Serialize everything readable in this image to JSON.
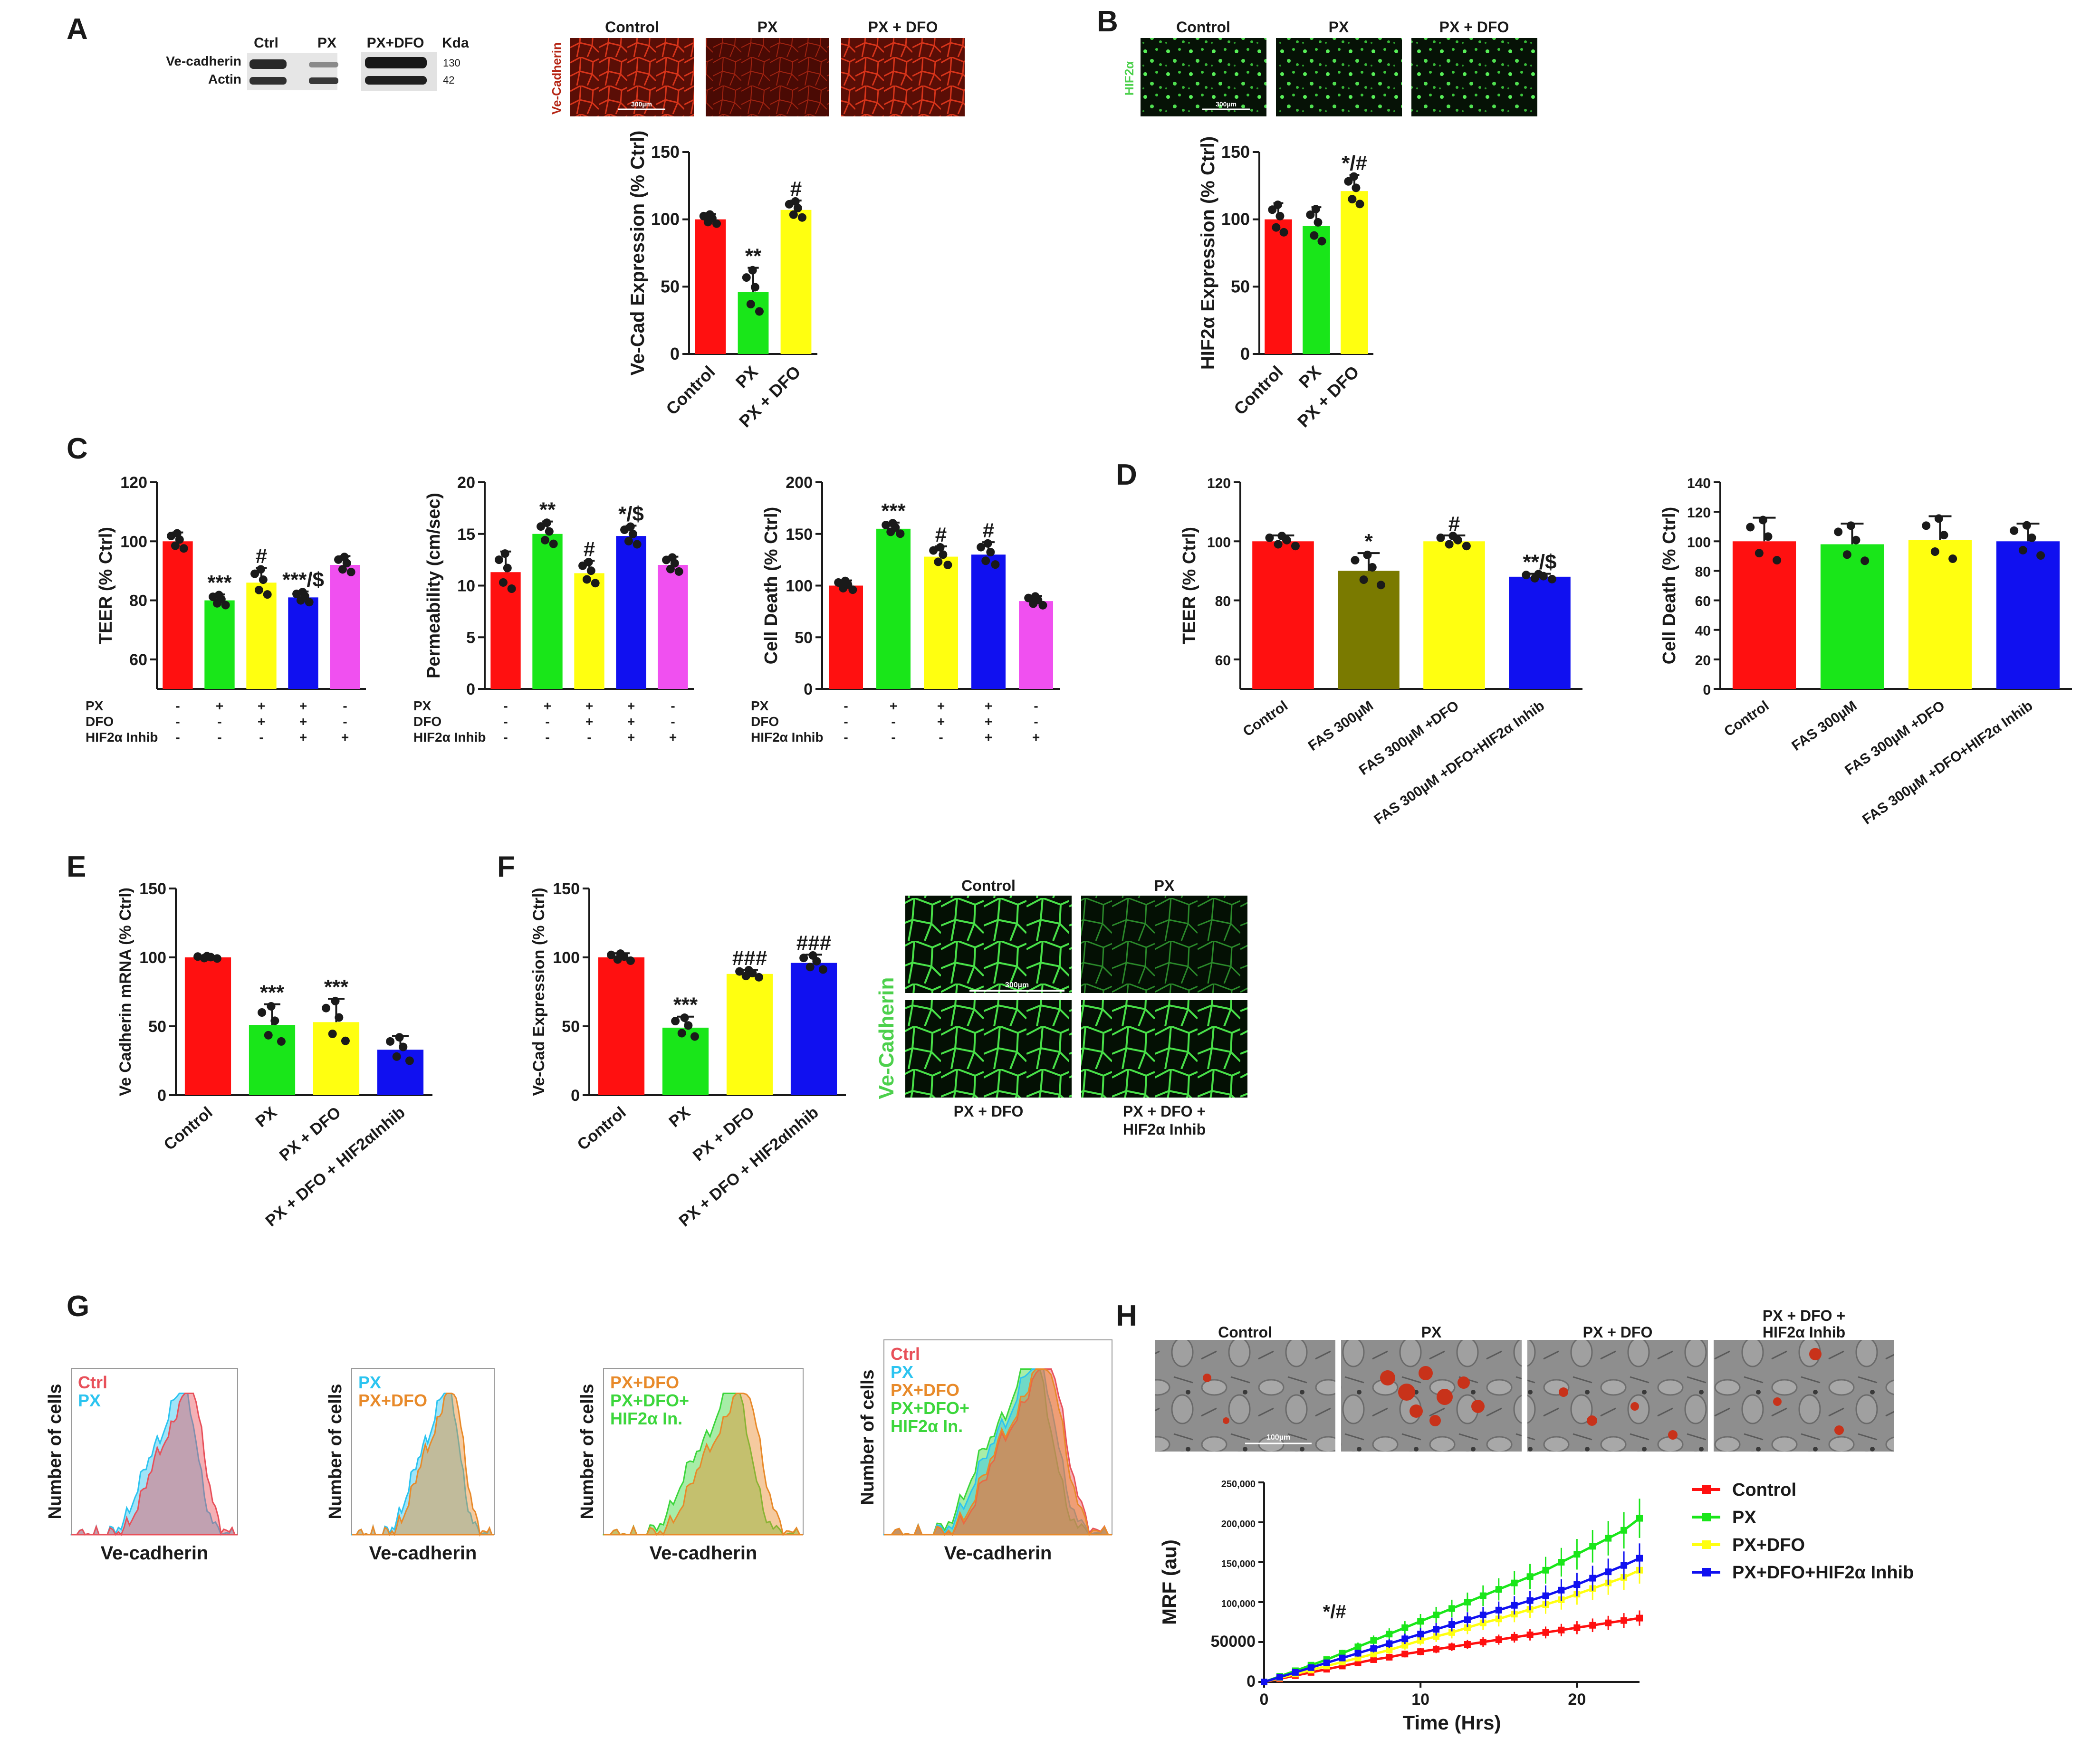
{
  "figure": {
    "panels": {
      "A": "A",
      "B": "B",
      "C": "C",
      "D": "D",
      "E": "E",
      "F": "F",
      "G": "G",
      "H": "H"
    }
  },
  "colors": {
    "red": "#ff1010",
    "green": "#19e619",
    "yellow": "#ffff10",
    "blue": "#1010f0",
    "magenta": "#f050f0",
    "olive": "#7a7a00",
    "hist_red": "#e8505a",
    "hist_cyan": "#2cc4f0",
    "hist_orange": "#e88a2a",
    "hist_green": "#3cd63c",
    "ve_red": "#b52514",
    "hif_green": "#4cd04c"
  },
  "blot": {
    "lanes": [
      "Ctrl",
      "PX",
      "PX+DFO"
    ],
    "kda_label": "Kda",
    "rows": [
      {
        "name": "Ve-cadherin",
        "kda": "130"
      },
      {
        "name": "Actin",
        "kda": "42"
      }
    ]
  },
  "micro_A": {
    "stain": "Ve-Cadherin",
    "scale": "300µm",
    "titles": [
      "Control",
      "PX",
      "PX + DFO"
    ]
  },
  "micro_B": {
    "stain": "HIF2α",
    "scale": "300µm",
    "titles": [
      "Control",
      "PX",
      "PX + DFO"
    ]
  },
  "micro_F": {
    "stain": "Ve-Cadherin",
    "scale": "300µm",
    "titles": [
      "Control",
      "PX"
    ],
    "bottom_titles": [
      "PX + DFO",
      "PX + DFO +",
      "HIF2α Inhib"
    ]
  },
  "micro_H": {
    "scale": "100µm",
    "titles": [
      "Control",
      "PX",
      "PX + DFO",
      "PX + DFO +",
      "HIF2α Inhib"
    ]
  },
  "chart_data": [
    {
      "id": "A",
      "type": "bar",
      "ylabel": "Ve-Cad Expression (% Ctrl)",
      "ylim": [
        0,
        150
      ],
      "yticks": [
        0,
        50,
        100,
        150
      ],
      "categories": [
        "Control",
        "PX",
        "PX + DFO"
      ],
      "values": [
        100,
        46,
        107
      ],
      "errors": [
        4,
        18,
        7
      ],
      "colors": [
        "#ff1010",
        "#19e619",
        "#ffff10"
      ],
      "annotations": [
        "",
        "**",
        "#"
      ]
    },
    {
      "id": "B",
      "type": "bar",
      "ylabel": "HIF2α Expression (% Ctrl)",
      "ylim": [
        0,
        150
      ],
      "yticks": [
        0,
        50,
        100,
        150
      ],
      "categories": [
        "Control",
        "PX",
        "PX + DFO"
      ],
      "values": [
        100,
        95,
        121
      ],
      "errors": [
        12,
        14,
        12
      ],
      "colors": [
        "#ff1010",
        "#19e619",
        "#ffff10"
      ],
      "annotations": [
        "",
        "",
        "*/#"
      ]
    },
    {
      "id": "C1",
      "type": "bar",
      "ylabel": "TEER (% Ctrl)",
      "ylim": [
        50,
        120
      ],
      "yticks": [
        60,
        80,
        100,
        120
      ],
      "categories": [
        "",
        "",
        "",
        "",
        ""
      ],
      "values": [
        100,
        80,
        86,
        81,
        92
      ],
      "errors": [
        3,
        2,
        5,
        2,
        3
      ],
      "colors": [
        "#ff1010",
        "#19e619",
        "#ffff10",
        "#1010f0",
        "#f050f0"
      ],
      "annotations": [
        "",
        "***",
        "#",
        "***/$",
        ""
      ],
      "conditions": {
        "rows": [
          "PX",
          "DFO",
          "HIF2α Inhib"
        ],
        "values": [
          [
            "-",
            "+",
            "+",
            "+",
            "-"
          ],
          [
            "-",
            "-",
            "+",
            "+",
            "-"
          ],
          [
            "-",
            "-",
            "-",
            "+",
            "+"
          ]
        ]
      }
    },
    {
      "id": "C2",
      "type": "bar",
      "ylabel": "Permeability (cm/sec)",
      "ylim": [
        0,
        20
      ],
      "yticks": [
        0,
        5,
        10,
        15,
        20
      ],
      "categories": [
        "",
        "",
        "",
        "",
        ""
      ],
      "values": [
        11.3,
        15.0,
        11.2,
        14.8,
        12.0
      ],
      "errors": [
        2.0,
        1.2,
        1.2,
        1.0,
        0.8
      ],
      "colors": [
        "#ff1010",
        "#19e619",
        "#ffff10",
        "#1010f0",
        "#f050f0"
      ],
      "annotations": [
        "",
        "**",
        "#",
        "*/$",
        ""
      ],
      "conditions": {
        "rows": [
          "PX",
          "DFO",
          "HIF2α Inhib"
        ],
        "values": [
          [
            "-",
            "+",
            "+",
            "+",
            "-"
          ],
          [
            "-",
            "-",
            "+",
            "+",
            "-"
          ],
          [
            "-",
            "-",
            "-",
            "+",
            "+"
          ]
        ]
      }
    },
    {
      "id": "C3",
      "type": "bar",
      "ylabel": "Cell Death (% Ctrl)",
      "ylim": [
        0,
        200
      ],
      "yticks": [
        0,
        50,
        100,
        150,
        200
      ],
      "categories": [
        "",
        "",
        "",
        "",
        ""
      ],
      "values": [
        100,
        155,
        128,
        130,
        85
      ],
      "errors": [
        5,
        6,
        10,
        12,
        5
      ],
      "colors": [
        "#ff1010",
        "#19e619",
        "#ffff10",
        "#1010f0",
        "#f050f0"
      ],
      "annotations": [
        "",
        "***",
        "#",
        "#",
        ""
      ],
      "conditions": {
        "rows": [
          "PX",
          "DFO",
          "HIF2α Inhib"
        ],
        "values": [
          [
            "-",
            "+",
            "+",
            "+",
            "-"
          ],
          [
            "-",
            "-",
            "+",
            "+",
            "-"
          ],
          [
            "-",
            "-",
            "-",
            "+",
            "+"
          ]
        ]
      }
    },
    {
      "id": "D1",
      "type": "bar",
      "ylabel": "TEER (% Ctrl)",
      "ylim": [
        50,
        120
      ],
      "yticks": [
        60,
        80,
        100,
        120
      ],
      "categories": [
        "Control",
        "FAS 300µM",
        "FAS 300µM +DFO",
        "FAS 300µM +DFO+HIF2α Inhib"
      ],
      "values": [
        100,
        90,
        100,
        88
      ],
      "errors": [
        2,
        6,
        2,
        1
      ],
      "colors": [
        "#ff1010",
        "#7a7a00",
        "#ffff10",
        "#1010f0"
      ],
      "annotations": [
        "",
        "*",
        "#",
        "**/$"
      ]
    },
    {
      "id": "D2",
      "type": "bar",
      "ylabel": "Cell Death (% Ctrl)",
      "ylim": [
        0,
        140
      ],
      "yticks": [
        0,
        20,
        40,
        60,
        80,
        100,
        120,
        140
      ],
      "categories": [
        "Control",
        "FAS 300µM",
        "FAS 300µM +DFO",
        "FAS 300µM +DFO+HIF2α Inhib"
      ],
      "values": [
        100,
        98,
        101,
        100
      ],
      "errors": [
        16,
        14,
        16,
        12
      ],
      "colors": [
        "#ff1010",
        "#19e619",
        "#ffff10",
        "#1010f0"
      ],
      "annotations": [
        "",
        "",
        "",
        ""
      ]
    },
    {
      "id": "E",
      "type": "bar",
      "ylabel": "Ve Cadherin mRNA (% Ctrl)",
      "ylim": [
        0,
        150
      ],
      "yticks": [
        0,
        50,
        100,
        150
      ],
      "categories": [
        "Control",
        "PX",
        "PX + DFO",
        "PX + DFO + HIF2αInhib"
      ],
      "values": [
        100,
        51,
        53,
        33
      ],
      "errors": [
        1,
        15,
        17,
        10
      ],
      "colors": [
        "#ff1010",
        "#19e619",
        "#ffff10",
        "#1010f0"
      ],
      "annotations": [
        "",
        "***",
        "***",
        ""
      ]
    },
    {
      "id": "F",
      "type": "bar",
      "ylabel": "Ve-Cad Expression (% Ctrl)",
      "ylim": [
        0,
        150
      ],
      "yticks": [
        0,
        50,
        100,
        150
      ],
      "categories": [
        "Control",
        "PX",
        "PX + DFO",
        "PX + DFO + HIF2αInhib"
      ],
      "values": [
        100,
        49,
        88,
        96
      ],
      "errors": [
        3,
        8,
        3,
        6
      ],
      "colors": [
        "#ff1010",
        "#19e619",
        "#ffff10",
        "#1010f0"
      ],
      "annotations": [
        "",
        "***",
        "###",
        "###"
      ]
    },
    {
      "id": "G",
      "type": "histogram",
      "xlabel": "Ve-cadherin",
      "ylabel": "Number of cells",
      "plots": [
        {
          "legend": [
            "Ctrl",
            "PX"
          ]
        },
        {
          "legend": [
            "PX",
            "PX+DFO"
          ]
        },
        {
          "legend": [
            "PX+DFO",
            "PX+DFO+",
            "HIF2α In."
          ]
        },
        {
          "legend": [
            "Ctrl",
            "PX",
            "PX+DFO",
            "PX+DFO+",
            "HIF2α In."
          ]
        }
      ]
    },
    {
      "id": "H",
      "type": "line",
      "xlabel": "Time (Hrs)",
      "ylabel": "MRF (au)",
      "xlim": [
        0,
        24
      ],
      "ylim": [
        0,
        250000
      ],
      "xticks": [
        0,
        10,
        20
      ],
      "yticks": [
        0,
        50000,
        100000,
        150000,
        200000,
        250000
      ],
      "ytick_labels": [
        "0",
        "50000",
        "100,000",
        "150,000",
        "200,000",
        "250,000"
      ],
      "annotation": "*/#",
      "x": [
        0,
        1,
        2,
        3,
        4,
        5,
        6,
        7,
        8,
        9,
        10,
        11,
        12,
        13,
        14,
        15,
        16,
        17,
        18,
        19,
        20,
        21,
        22,
        23,
        24
      ],
      "series": [
        {
          "name": "Control",
          "color": "#ff1010",
          "values": [
            0,
            4000,
            8000,
            12000,
            16000,
            20000,
            24000,
            28000,
            31000,
            35000,
            38000,
            41000,
            44000,
            47000,
            50000,
            53000,
            56000,
            59000,
            62000,
            65000,
            68000,
            71000,
            74000,
            77000,
            80000
          ]
        },
        {
          "name": "PX",
          "color": "#19e619",
          "values": [
            0,
            7000,
            14000,
            21000,
            28000,
            36000,
            44000,
            52000,
            60000,
            68000,
            76000,
            84000,
            92000,
            100000,
            108000,
            116000,
            124000,
            132000,
            140000,
            150000,
            160000,
            170000,
            180000,
            190000,
            205000
          ]
        },
        {
          "name": "PX+DFO",
          "color": "#ffff10",
          "values": [
            0,
            5000,
            10000,
            15000,
            20000,
            25000,
            30000,
            35000,
            40000,
            46000,
            52000,
            57000,
            62000,
            68000,
            74000,
            79000,
            85000,
            91000,
            97000,
            103000,
            110000,
            117000,
            124000,
            131000,
            140000
          ]
        },
        {
          "name": "PX+DFO+HIF2α Inhib",
          "color": "#1010f0",
          "values": [
            0,
            6000,
            12000,
            18000,
            24000,
            30000,
            36000,
            42000,
            48000,
            54000,
            60000,
            66000,
            72000,
            78000,
            84000,
            90000,
            96000,
            102000,
            108000,
            115000,
            122000,
            130000,
            138000,
            146000,
            155000
          ]
        }
      ]
    }
  ]
}
